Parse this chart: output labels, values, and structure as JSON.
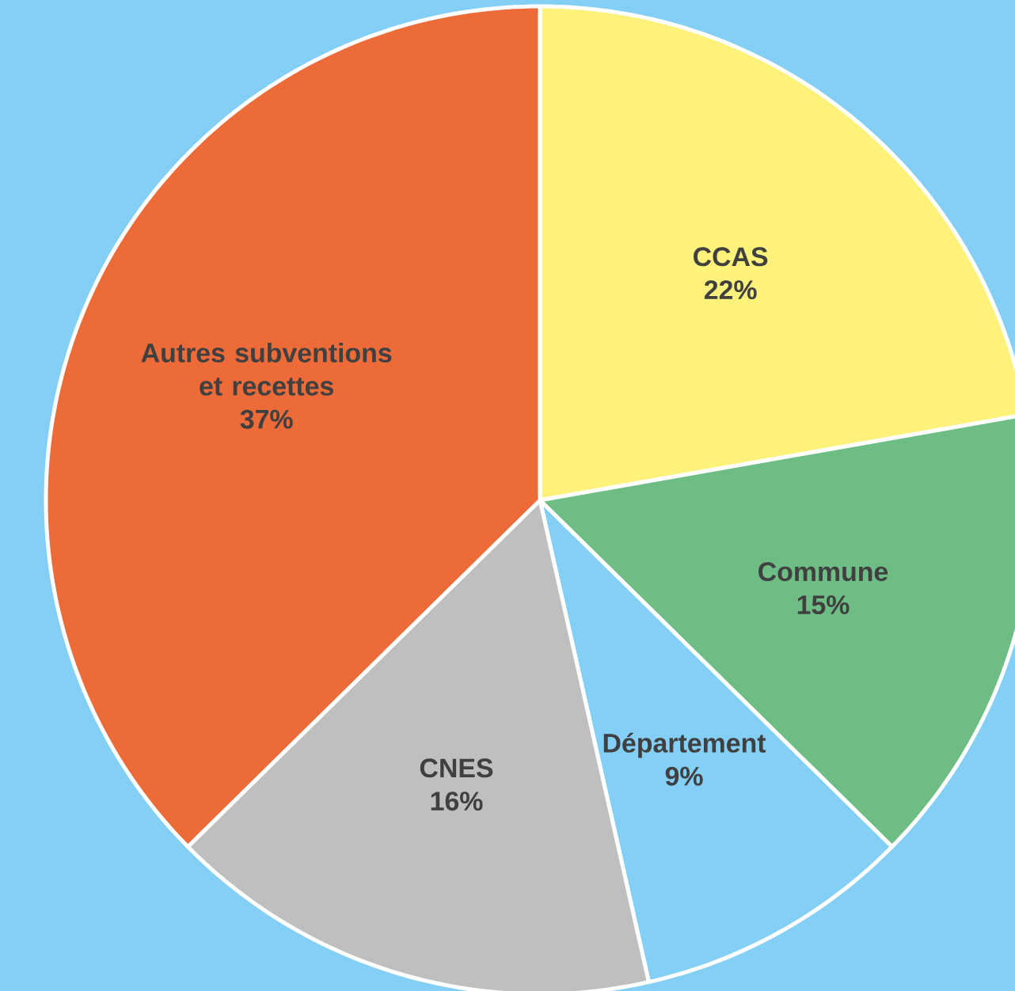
{
  "chart_data": {
    "type": "pie",
    "categories": [
      "CCAS",
      "Commune",
      "Département",
      "CNES",
      "Autres subventions et recettes"
    ],
    "values": [
      22,
      15,
      9,
      16,
      37
    ],
    "value_labels": [
      "22%",
      "15%",
      "9%",
      "16%",
      "37%"
    ],
    "colors": [
      "#fef27a",
      "#6ebd84",
      "#84cff5",
      "#bfbfbf",
      "#ec6b39"
    ]
  }
}
